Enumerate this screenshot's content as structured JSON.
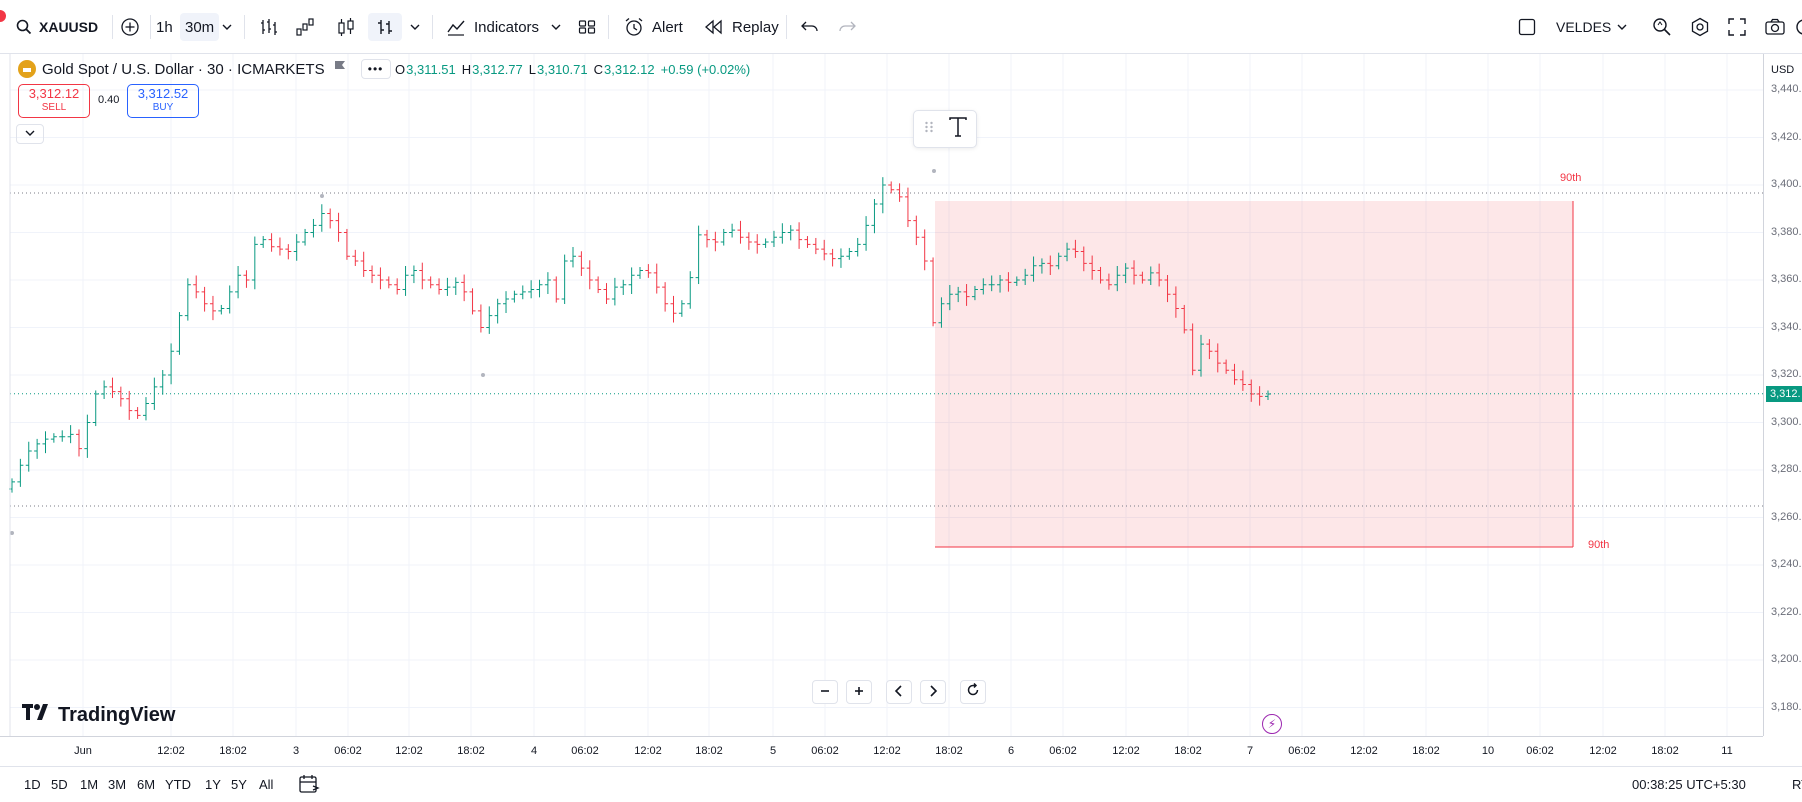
{
  "toolbar": {
    "symbol": "XAUUSD",
    "interval_1h": "1h",
    "interval_30m": "30m",
    "indicators_label": "Indicators",
    "alert_label": "Alert",
    "replay_label": "Replay",
    "layout_name": "VELDES"
  },
  "legend": {
    "title": "Gold Spot / U.S. Dollar · 30 · ICMARKETS",
    "o_key": "O",
    "o_val": "3,311.51",
    "h_key": "H",
    "h_val": "3,312.77",
    "l_key": "L",
    "l_val": "3,310.71",
    "c_key": "C",
    "c_val": "3,312.12",
    "change": "+0.59 (+0.02%)",
    "change_color": "#089981"
  },
  "trade": {
    "sell_price": "3,312.12",
    "sell_label": "SELL",
    "spread": "0.40",
    "buy_price": "3,312.52",
    "buy_label": "BUY"
  },
  "price_axis": {
    "currency": "USD",
    "labels": [
      "3,440.",
      "3,420.",
      "3,400.",
      "3,380.",
      "3,360.",
      "3,340.",
      "3,320.",
      "3,300.",
      "3,280.",
      "3,260.",
      "3,240.",
      "3,220.",
      "3,200.",
      "3,180."
    ],
    "current_label": "3,312."
  },
  "time_axis": {
    "labels": [
      "Jun",
      "12:02",
      "18:02",
      "3",
      "06:02",
      "12:02",
      "18:02",
      "4",
      "06:02",
      "12:02",
      "18:02",
      "5",
      "06:02",
      "12:02",
      "18:02",
      "6",
      "06:02",
      "12:02",
      "18:02",
      "7",
      "06:02",
      "12:02",
      "18:02",
      "10",
      "06:02",
      "12:02",
      "18:02",
      "11"
    ]
  },
  "box": {
    "top_label": "90th",
    "bottom_label": "90th",
    "color": "#f23645"
  },
  "ranges": [
    "1D",
    "5D",
    "1M",
    "3M",
    "6M",
    "YTD",
    "1Y",
    "5Y",
    "All"
  ],
  "status": {
    "clock": "00:38:25 UTC+5:30",
    "rt": "RT"
  },
  "brand": {
    "name": "TradingView"
  },
  "chart_data": {
    "type": "candlestick",
    "y_range": [
      3170,
      3450
    ],
    "up_color": "#089981",
    "down_color": "#f23645",
    "current_price": 3312.12,
    "closes": [
      3275,
      3282,
      3288,
      3291,
      3293,
      3294,
      3294,
      3295,
      3289,
      3300,
      3312,
      3315,
      3313,
      3310,
      3305,
      3303,
      3308,
      3315,
      3320,
      3330,
      3345,
      3358,
      3355,
      3350,
      3347,
      3348,
      3355,
      3362,
      3360,
      3375,
      3377,
      3374,
      3373,
      3372,
      3376,
      3380,
      3383,
      3388,
      3385,
      3380,
      3370,
      3368,
      3364,
      3362,
      3360,
      3358,
      3356,
      3362,
      3364,
      3360,
      3358,
      3356,
      3357,
      3359,
      3355,
      3347,
      3340,
      3345,
      3350,
      3352,
      3354,
      3355,
      3356,
      3358,
      3360,
      3352,
      3368,
      3370,
      3365,
      3360,
      3356,
      3352,
      3357,
      3358,
      3362,
      3364,
      3363,
      3357,
      3350,
      3346,
      3350,
      3361,
      3379,
      3377,
      3376,
      3380,
      3381,
      3378,
      3376,
      3375,
      3376,
      3378,
      3380,
      3381,
      3377,
      3375,
      3373,
      3371,
      3369,
      3370,
      3372,
      3375,
      3383,
      3392,
      3400,
      3398,
      3395,
      3385,
      3378,
      3368,
      3342,
      3350,
      3354,
      3355,
      3353,
      3356,
      3358,
      3358,
      3360,
      3359,
      3360,
      3362,
      3366,
      3367,
      3366,
      3370,
      3373,
      3372,
      3367,
      3364,
      3360,
      3358,
      3362,
      3365,
      3362,
      3360,
      3363,
      3360,
      3354,
      3348,
      3339,
      3322,
      3333,
      3330,
      3325,
      3322,
      3318,
      3316,
      3312,
      3311,
      3312
    ]
  }
}
